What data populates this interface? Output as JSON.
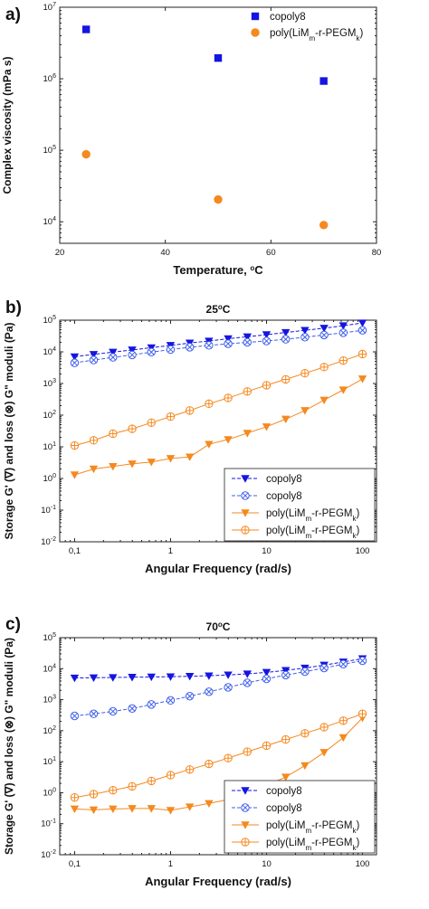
{
  "chart_data": [
    {
      "type": "scatter",
      "panel_label": "a)",
      "title": "",
      "xlabel": "Temperature, °C",
      "ylabel": "Complex viscosity (mPa s)",
      "xscale": "linear",
      "yscale": "log",
      "xlim": [
        20,
        80
      ],
      "ylim": [
        5000,
        10000000
      ],
      "x_ticks": [
        "20",
        "40",
        "60",
        "80"
      ],
      "y_ticks": [
        {
          "base": "10",
          "exp": "4",
          "value": 10000
        },
        {
          "base": "10",
          "exp": "5",
          "value": 100000
        },
        {
          "base": "10",
          "exp": "6",
          "value": 1000000
        },
        {
          "base": "10",
          "exp": "7",
          "value": 10000000
        }
      ],
      "legend_position": "top-right",
      "series": [
        {
          "name": "copoly8",
          "marker": "square",
          "color": "#1515e0",
          "x": [
            25,
            50,
            70
          ],
          "y": [
            4900000,
            1950000,
            930000
          ]
        },
        {
          "name_parts": [
            "poly(LiM",
            "m",
            "-r-PEGM",
            "k",
            ")"
          ],
          "marker": "circle",
          "color": "#f5891f",
          "x": [
            25,
            50,
            70
          ],
          "y": [
            88000,
            20500,
            9000
          ]
        }
      ]
    },
    {
      "type": "line",
      "panel_label": "b)",
      "title": "25°C",
      "xlabel": "Angular Frequency (rad/s)",
      "ylabel": "Storage G' (∇) and loss (⊗) G\" moduli (Pa)",
      "xscale": "log",
      "yscale": "log",
      "xlim": [
        0.07,
        140
      ],
      "ylim": [
        0.01,
        100000
      ],
      "x_ticks": [
        {
          "label": "0,1",
          "value": 0.1
        },
        {
          "label": "1",
          "value": 1
        },
        {
          "label": "10",
          "value": 10
        },
        {
          "label": "100",
          "value": 100
        }
      ],
      "y_ticks": [
        {
          "base": "10",
          "exp": "-2",
          "value": 0.01
        },
        {
          "base": "10",
          "exp": "-1",
          "value": 0.1
        },
        {
          "base": "10",
          "exp": "0",
          "value": 1
        },
        {
          "base": "10",
          "exp": "1",
          "value": 10
        },
        {
          "base": "10",
          "exp": "2",
          "value": 100
        },
        {
          "base": "10",
          "exp": "3",
          "value": 1000
        },
        {
          "base": "10",
          "exp": "4",
          "value": 10000
        },
        {
          "base": "10",
          "exp": "5",
          "value": 100000
        }
      ],
      "legend_position": "bottom-right",
      "series": [
        {
          "name": "copoly8",
          "marker": "triangle-down",
          "color": "#1515e0",
          "line": "dash",
          "x": [
            0.1,
            0.158,
            0.251,
            0.398,
            0.631,
            1.0,
            1.585,
            2.512,
            3.981,
            6.31,
            10,
            15.85,
            25.12,
            39.81,
            63.1,
            100
          ],
          "y": [
            7000,
            8300,
            9800,
            11500,
            13500,
            16000,
            19000,
            22000,
            26000,
            30000,
            35000,
            41000,
            48000,
            56000,
            67000,
            82000
          ]
        },
        {
          "name": "copoly8",
          "marker": "circle-x",
          "color": "#3f5fe8",
          "line": "dash",
          "x": [
            0.1,
            0.158,
            0.251,
            0.398,
            0.631,
            1.0,
            1.585,
            2.512,
            3.981,
            6.31,
            10,
            15.85,
            25.12,
            39.81,
            63.1,
            100
          ],
          "y": [
            4500,
            5500,
            6700,
            8000,
            9800,
            11800,
            14000,
            16000,
            18000,
            20000,
            22000,
            25000,
            29000,
            34000,
            40000,
            48000
          ]
        },
        {
          "name_parts": [
            "poly(LiM",
            "m",
            "-r-PEGM",
            "k",
            ")"
          ],
          "marker": "triangle-down",
          "color": "#f5891f",
          "line": "solid",
          "x": [
            0.1,
            0.158,
            0.251,
            0.398,
            0.631,
            1.0,
            1.585,
            2.512,
            3.981,
            6.31,
            10,
            15.85,
            25.12,
            39.81,
            63.1,
            100
          ],
          "y": [
            1.3,
            2.0,
            2.4,
            2.9,
            3.3,
            4.3,
            4.8,
            12,
            17,
            27,
            43,
            75,
            140,
            300,
            630,
            1400
          ]
        },
        {
          "name_parts": [
            "poly(LiM",
            "m",
            "-r-PEGM",
            "k",
            ")"
          ],
          "marker": "circle-plus",
          "color": "#f5891f",
          "line": "solid",
          "x": [
            0.1,
            0.158,
            0.251,
            0.398,
            0.631,
            1.0,
            1.585,
            2.512,
            3.981,
            6.31,
            10,
            15.85,
            25.12,
            39.81,
            63.1,
            100
          ],
          "y": [
            11,
            16,
            26,
            37,
            58,
            90,
            140,
            230,
            350,
            560,
            880,
            1350,
            2100,
            3300,
            5300,
            8500
          ]
        }
      ]
    },
    {
      "type": "line",
      "panel_label": "c)",
      "title": "70°C",
      "xlabel": "Angular Frequency (rad/s)",
      "ylabel": "Storage G' (∇) and loss (⊗) G\" moduli (Pa)",
      "xscale": "log",
      "yscale": "log",
      "xlim": [
        0.07,
        140
      ],
      "ylim": [
        0.01,
        100000
      ],
      "x_ticks": [
        {
          "label": "0,1",
          "value": 0.1
        },
        {
          "label": "1",
          "value": 1
        },
        {
          "label": "10",
          "value": 10
        },
        {
          "label": "100",
          "value": 100
        }
      ],
      "y_ticks": [
        {
          "base": "10",
          "exp": "-2",
          "value": 0.01
        },
        {
          "base": "10",
          "exp": "-1",
          "value": 0.1
        },
        {
          "base": "10",
          "exp": "0",
          "value": 1
        },
        {
          "base": "10",
          "exp": "1",
          "value": 10
        },
        {
          "base": "10",
          "exp": "2",
          "value": 100
        },
        {
          "base": "10",
          "exp": "3",
          "value": 1000
        },
        {
          "base": "10",
          "exp": "4",
          "value": 10000
        },
        {
          "base": "10",
          "exp": "5",
          "value": 100000
        }
      ],
      "legend_position": "bottom-right",
      "series": [
        {
          "name": "copoly8",
          "marker": "triangle-down",
          "color": "#1515e0",
          "line": "dash",
          "x": [
            0.1,
            0.158,
            0.251,
            0.398,
            0.631,
            1.0,
            1.585,
            2.512,
            3.981,
            6.31,
            10,
            15.85,
            25.12,
            39.81,
            63.1,
            100
          ],
          "y": [
            5000,
            5100,
            5200,
            5300,
            5400,
            5500,
            5700,
            5900,
            6300,
            6800,
            7600,
            8800,
            10500,
            13000,
            16500,
            21000
          ]
        },
        {
          "name": "copoly8",
          "marker": "circle-x",
          "color": "#3f5fe8",
          "line": "dash",
          "x": [
            0.1,
            0.158,
            0.251,
            0.398,
            0.631,
            1.0,
            1.585,
            2.512,
            3.981,
            6.31,
            10,
            15.85,
            25.12,
            39.81,
            63.1,
            100
          ],
          "y": [
            300,
            350,
            420,
            520,
            700,
            950,
            1300,
            1800,
            2500,
            3500,
            4700,
            6200,
            8000,
            10500,
            14000,
            18000
          ]
        },
        {
          "name_parts": [
            "poly(LiM",
            "m",
            "-r-PEGM",
            "k",
            ")"
          ],
          "marker": "triangle-down",
          "color": "#f5891f",
          "line": "solid",
          "x": [
            0.1,
            0.158,
            0.251,
            0.398,
            0.631,
            1.0,
            1.585,
            2.512,
            3.981,
            6.31,
            10,
            15.85,
            25.12,
            39.81,
            63.1,
            100
          ],
          "y": [
            0.3,
            0.28,
            0.3,
            0.31,
            0.31,
            0.27,
            0.35,
            0.45,
            0.6,
            1.0,
            1.7,
            3.2,
            7.5,
            20,
            60,
            260
          ]
        },
        {
          "name_parts": [
            "poly(LiM",
            "m",
            "-r-PEGM",
            "k",
            ")"
          ],
          "marker": "circle-plus",
          "color": "#f5891f",
          "line": "solid",
          "x": [
            0.1,
            0.158,
            0.251,
            0.398,
            0.631,
            1.0,
            1.585,
            2.512,
            3.981,
            6.31,
            10,
            15.85,
            25.12,
            39.81,
            63.1,
            100
          ],
          "y": [
            0.7,
            0.9,
            1.2,
            1.6,
            2.4,
            3.7,
            5.6,
            8.5,
            13,
            21,
            33,
            52,
            82,
            130,
            210,
            350
          ]
        }
      ]
    }
  ]
}
